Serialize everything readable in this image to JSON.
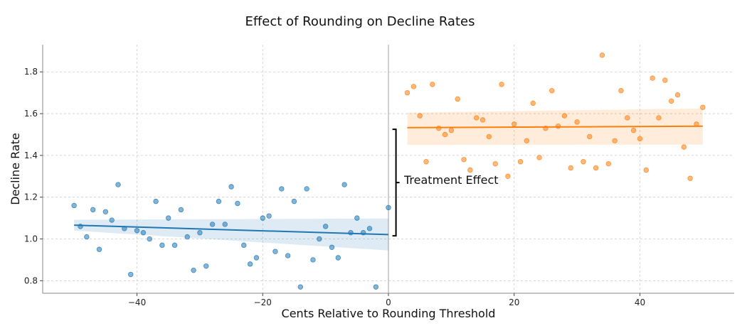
{
  "chart_data": {
    "type": "scatter",
    "title": "Effect of Rounding on Decline Rates",
    "xlabel": "Cents Relative to Rounding Threshold",
    "ylabel": "Decline Rate",
    "xlim": [
      -55,
      55
    ],
    "ylim": [
      0.74,
      1.93
    ],
    "xticks": [
      -40,
      -20,
      0,
      20,
      40
    ],
    "xtick_labels": [
      "−40",
      "−20",
      "0",
      "20",
      "40"
    ],
    "yticks": [
      0.8,
      1.0,
      1.2,
      1.4,
      1.6,
      1.8
    ],
    "ytick_labels": [
      "0.8",
      "1.0",
      "1.2",
      "1.4",
      "1.6",
      "1.8"
    ],
    "grid": true,
    "threshold_line_x": 0,
    "series": [
      {
        "color": "#1f77b4",
        "points": [
          [
            -50,
            1.16
          ],
          [
            -49,
            1.06
          ],
          [
            -48,
            1.01
          ],
          [
            -47,
            1.14
          ],
          [
            -46,
            0.95
          ],
          [
            -45,
            1.13
          ],
          [
            -44,
            1.09
          ],
          [
            -43,
            1.26
          ],
          [
            -42,
            1.05
          ],
          [
            -41,
            0.83
          ],
          [
            -40,
            1.04
          ],
          [
            -39,
            1.03
          ],
          [
            -38,
            1.0
          ],
          [
            -37,
            1.18
          ],
          [
            -36,
            0.97
          ],
          [
            -35,
            1.1
          ],
          [
            -34,
            0.97
          ],
          [
            -33,
            1.14
          ],
          [
            -32,
            1.01
          ],
          [
            -31,
            0.85
          ],
          [
            -30,
            1.03
          ],
          [
            -29,
            0.87
          ],
          [
            -28,
            1.07
          ],
          [
            -27,
            1.18
          ],
          [
            -26,
            1.07
          ],
          [
            -25,
            1.25
          ],
          [
            -24,
            1.17
          ],
          [
            -23,
            0.97
          ],
          [
            -22,
            0.88
          ],
          [
            -21,
            0.91
          ],
          [
            -20,
            1.1
          ],
          [
            -19,
            1.11
          ],
          [
            -18,
            0.94
          ],
          [
            -17,
            1.24
          ],
          [
            -16,
            0.92
          ],
          [
            -15,
            1.18
          ],
          [
            -14,
            0.77
          ],
          [
            -13,
            1.24
          ],
          [
            -12,
            0.9
          ],
          [
            -11,
            1.0
          ],
          [
            -10,
            1.06
          ],
          [
            -9,
            0.96
          ],
          [
            -8,
            0.91
          ],
          [
            -7,
            1.26
          ],
          [
            -6,
            1.03
          ],
          [
            -5,
            1.1
          ],
          [
            -4,
            1.03
          ],
          [
            -3,
            1.05
          ],
          [
            -2,
            0.77
          ],
          [
            0,
            1.15
          ]
        ],
        "fit": {
          "x": [
            -50,
            0
          ],
          "y": [
            1.066,
            1.021
          ]
        },
        "band": {
          "upper": [
            1.092,
            1.098
          ],
          "lower": [
            1.04,
            0.945
          ]
        }
      },
      {
        "color": "#ff7f0e",
        "points": [
          [
            3,
            1.7
          ],
          [
            4,
            1.73
          ],
          [
            5,
            1.59
          ],
          [
            6,
            1.37
          ],
          [
            7,
            1.74
          ],
          [
            8,
            1.53
          ],
          [
            9,
            1.5
          ],
          [
            10,
            1.52
          ],
          [
            11,
            1.67
          ],
          [
            12,
            1.38
          ],
          [
            13,
            1.33
          ],
          [
            14,
            1.58
          ],
          [
            15,
            1.57
          ],
          [
            16,
            1.49
          ],
          [
            17,
            1.36
          ],
          [
            18,
            1.74
          ],
          [
            19,
            1.3
          ],
          [
            20,
            1.55
          ],
          [
            21,
            1.37
          ],
          [
            22,
            1.47
          ],
          [
            23,
            1.65
          ],
          [
            24,
            1.39
          ],
          [
            25,
            1.53
          ],
          [
            26,
            1.71
          ],
          [
            27,
            1.54
          ],
          [
            28,
            1.59
          ],
          [
            29,
            1.34
          ],
          [
            30,
            1.56
          ],
          [
            31,
            1.37
          ],
          [
            32,
            1.49
          ],
          [
            33,
            1.34
          ],
          [
            34,
            1.88
          ],
          [
            35,
            1.36
          ],
          [
            36,
            1.47
          ],
          [
            37,
            1.71
          ],
          [
            38,
            1.58
          ],
          [
            39,
            1.52
          ],
          [
            40,
            1.48
          ],
          [
            41,
            1.33
          ],
          [
            42,
            1.77
          ],
          [
            43,
            1.58
          ],
          [
            44,
            1.76
          ],
          [
            45,
            1.66
          ],
          [
            46,
            1.69
          ],
          [
            47,
            1.44
          ],
          [
            48,
            1.29
          ],
          [
            49,
            1.55
          ],
          [
            50,
            1.63
          ]
        ],
        "fit": {
          "x": [
            3,
            50
          ],
          "y": [
            1.533,
            1.54
          ]
        },
        "band": {
          "upper": [
            1.605,
            1.625
          ],
          "lower": [
            1.45,
            1.452
          ]
        }
      }
    ],
    "annotation": {
      "label": "Treatment Effect",
      "x": 1.2,
      "y_bottom": 1.015,
      "y_top": 1.525
    }
  }
}
